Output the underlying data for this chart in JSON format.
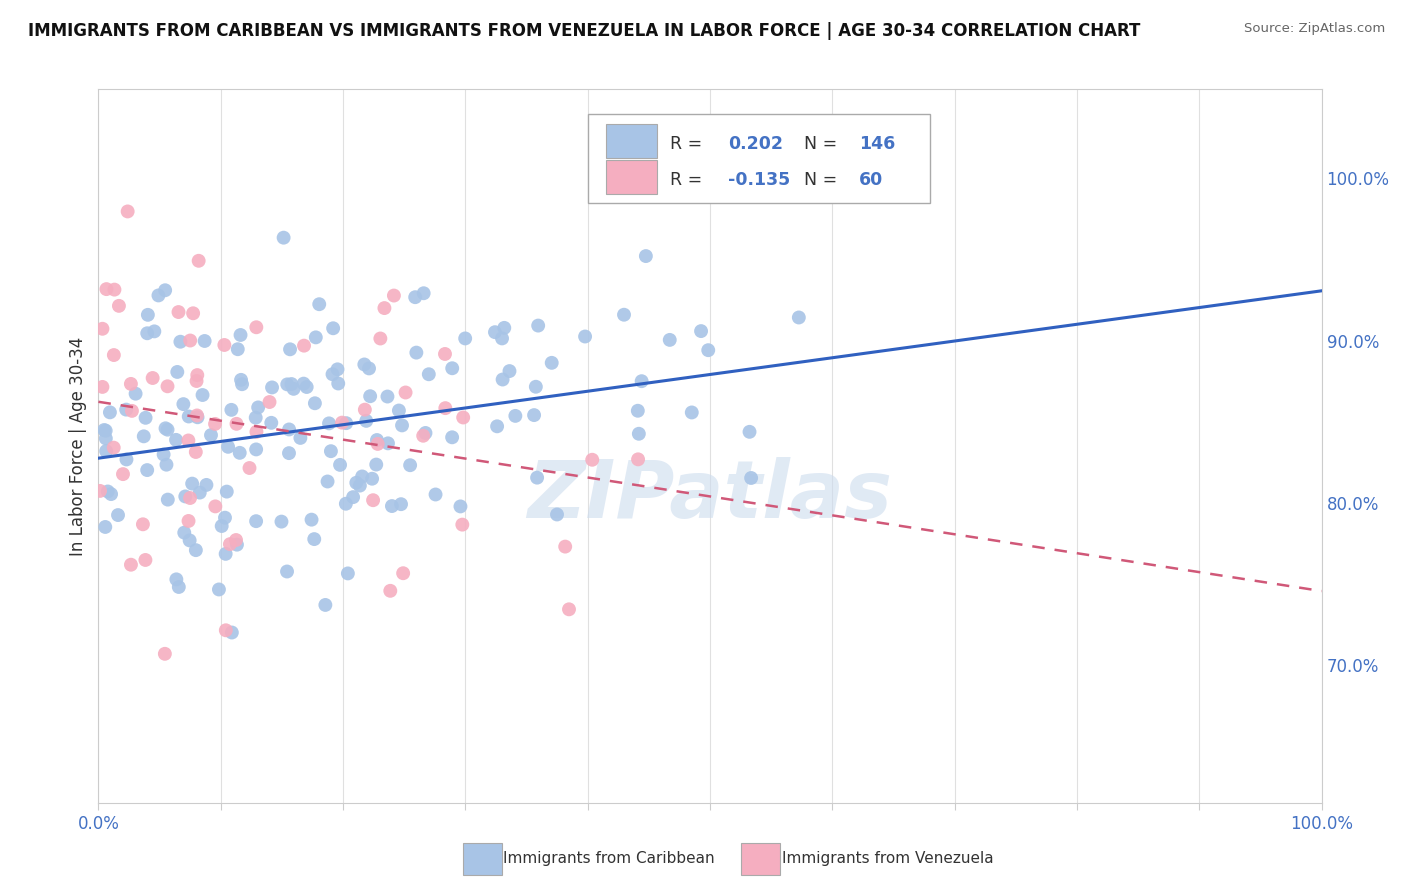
{
  "title": "IMMIGRANTS FROM CARIBBEAN VS IMMIGRANTS FROM VENEZUELA IN LABOR FORCE | AGE 30-34 CORRELATION CHART",
  "source": "Source: ZipAtlas.com",
  "ylabel": "In Labor Force | Age 30-34",
  "r_caribbean": 0.202,
  "n_caribbean": 146,
  "r_venezuela": -0.135,
  "n_venezuela": 60,
  "color_caribbean": "#a8c4e6",
  "color_venezuela": "#f5aec0",
  "line_color_caribbean": "#3060c0",
  "line_color_venezuela": "#d05878",
  "xlim": [
    0.0,
    1.0
  ],
  "ylim": [
    0.615,
    1.055
  ],
  "right_yticks": [
    0.7,
    0.8,
    0.9,
    1.0
  ],
  "right_yticklabels": [
    "70.0%",
    "80.0%",
    "90.0%",
    "100.0%"
  ],
  "watermark": "ZIPatlas",
  "background_color": "#ffffff",
  "legend_label_caribbean": "Immigrants from Caribbean",
  "legend_label_venezuela": "Immigrants from Venezuela",
  "grid_color": "#e0e0e0",
  "title_color": "#111111",
  "source_color": "#666666",
  "axis_label_color": "#333333",
  "tick_label_color": "#4472c4"
}
